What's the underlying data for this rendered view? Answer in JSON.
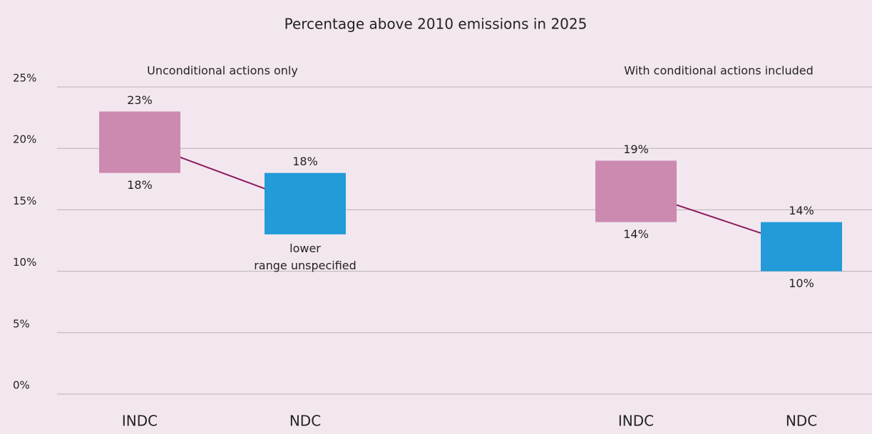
{
  "chart_data": {
    "type": "floating-bar",
    "title": "Percentage above 2010 emissions in 2025",
    "groups": [
      "Unconditional actions only",
      "With conditional actions included"
    ],
    "categories": [
      "INDC",
      "NDC",
      null,
      "INDC",
      "NDC"
    ],
    "low": [
      18,
      13,
      null,
      14,
      10
    ],
    "high": [
      23,
      18,
      null,
      19,
      14
    ],
    "low_labels": [
      "18%",
      null,
      null,
      "14%",
      "10%"
    ],
    "high_labels": [
      "23%",
      "18%",
      null,
      "19%",
      "14%"
    ],
    "colors": [
      "#cc8ab0",
      "#229bd8",
      null,
      "#cc8ab0",
      "#229bd8"
    ],
    "connector_color": "#8b1a5e",
    "annotations": [
      {
        "text": "lower range unspecified",
        "category": 1
      }
    ],
    "ylim": [
      0,
      25
    ],
    "yticks": [
      {
        "value": 0,
        "label": "0%"
      },
      {
        "value": 5,
        "label": "5%"
      },
      {
        "value": 10,
        "label": "10%"
      },
      {
        "value": 15,
        "label": "15%"
      },
      {
        "value": 20,
        "label": "20%"
      },
      {
        "value": 25,
        "label": "25%"
      }
    ],
    "grid": true
  }
}
